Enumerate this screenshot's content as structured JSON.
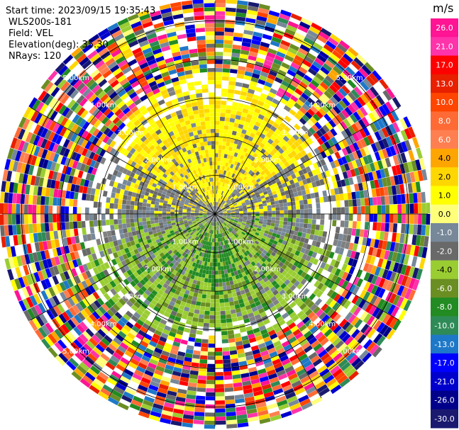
{
  "header": {
    "start_time": "Start time: 2023/09/15 19:35:43",
    "instrument": "WLS200s-181",
    "field": "Field: VEL",
    "elevation": "Elevation(deg): 35.30",
    "nrays": "NRays: 120"
  },
  "chart_data": {
    "type": "ppi-scan",
    "field": "VEL",
    "unit": "m/s",
    "n_rays": 120,
    "elevation_deg": 35.3,
    "range_rings_km": [
      1.0,
      2.0,
      3.0,
      4.0,
      5.0
    ],
    "range_labels": [
      "1.00km",
      "2.00km",
      "3.00km",
      "4.00km",
      "5.00km"
    ],
    "max_range_km": 5.5,
    "colorbar": {
      "ticks": [
        "26.0",
        "21.0",
        "17.0",
        "13.0",
        "10.0",
        "8.0",
        "6.0",
        "4.0",
        "2.0",
        "1.0",
        "0.0",
        "-1.0",
        "-2.0",
        "-4.0",
        "-6.0",
        "-8.0",
        "-10.0",
        "-13.0",
        "-17.0",
        "-21.0",
        "-26.0",
        "-30.0"
      ],
      "colors": [
        "#ff1493",
        "#ff33aa",
        "#ff0000",
        "#e82000",
        "#ff4500",
        "#ff6a35",
        "#ff7f50",
        "#ffa500",
        "#ffd700",
        "#ffff00",
        "#ffff7a",
        "#778899",
        "#696969",
        "#9acd32",
        "#6b8e23",
        "#228b22",
        "#2e8b57",
        "#1e78c8",
        "#0000ff",
        "#0000cd",
        "#00008b",
        "#191970"
      ]
    },
    "regions": [
      {
        "name": "yellow-positive-north",
        "from_az": -55,
        "to_az": 55,
        "from_km": 0.3,
        "to_km": 3.4,
        "value": 2.0
      },
      {
        "name": "gray-near-zero-inner",
        "from_az": 0,
        "to_az": 360,
        "from_km": 0.0,
        "to_km": 1.0,
        "value": 0.0
      },
      {
        "name": "green-negative-south",
        "from_az": 110,
        "to_az": 250,
        "from_km": 0.3,
        "to_km": 3.3,
        "value": -2.0
      },
      {
        "name": "noise-outer",
        "from_km": 3.5,
        "to_km": 5.5,
        "value": "random"
      }
    ]
  }
}
